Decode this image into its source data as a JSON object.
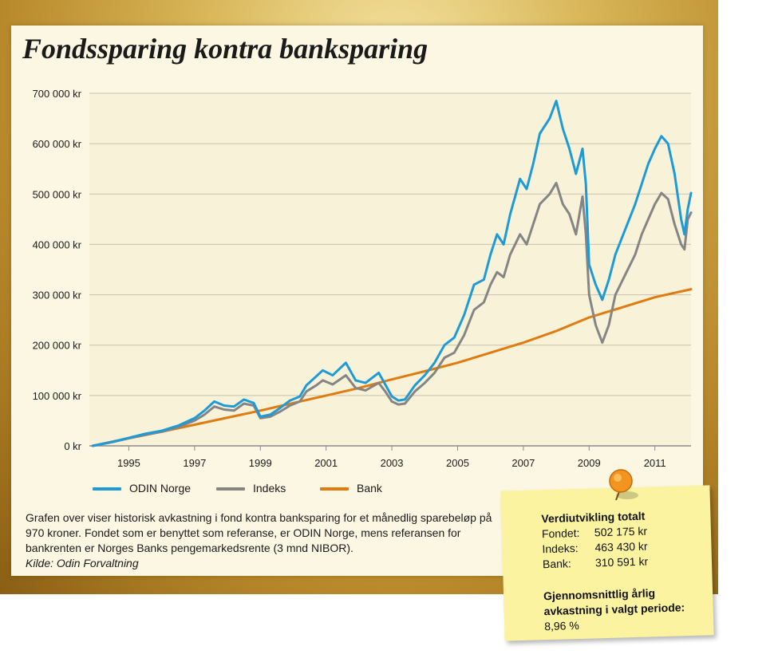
{
  "title": "Fondssparing kontra banksparing",
  "legend": [
    {
      "label": "ODIN Norge",
      "color": "#1e9ad6"
    },
    {
      "label": "Indeks",
      "color": "#858585"
    },
    {
      "label": "Bank",
      "color": "#e07b10"
    }
  ],
  "caption": {
    "text": "Grafen over viser historisk avkastning i fond kontra banksparing for et månedlig sparebeløp på 970 kroner. Fondet som er benyttet som referanse, er ODIN Norge, mens referansen for bankrenten er Norges Banks pengemarkedsrente (3 mnd NIBOR).",
    "source": "Kilde: Odin Forvaltning"
  },
  "note": {
    "header": "Verdiutvikling totalt",
    "rows": [
      {
        "label": "Fondet:",
        "value": "502 175 kr"
      },
      {
        "label": "Indeks:",
        "value": "463 430 kr"
      },
      {
        "label": "Bank:",
        "value": "310 591 kr"
      }
    ],
    "avg_label": "Gjennomsnittlig årlig avkastning i valgt periode",
    "avg_colon": ":",
    "avg_value": "8,96 %"
  },
  "chart_data": {
    "type": "line",
    "xlim": [
      1993.8,
      2012.1
    ],
    "ylim": [
      0,
      700000
    ],
    "x_ticks": [
      1995,
      1997,
      1999,
      2001,
      2003,
      2005,
      2007,
      2009,
      2011
    ],
    "y_ticks": [
      0,
      100000,
      200000,
      300000,
      400000,
      500000,
      600000,
      700000
    ],
    "y_tick_labels": [
      "0 kr",
      "100 000 kr",
      "200 000 kr",
      "300 000 kr",
      "400 000 kr",
      "500 000 kr",
      "600 000 kr",
      "700 000 kr"
    ],
    "grid": true,
    "series": [
      {
        "name": "ODIN Norge",
        "color": "#1e9ad6",
        "points": [
          [
            1993.9,
            0
          ],
          [
            1994.5,
            8000
          ],
          [
            1995,
            16000
          ],
          [
            1995.5,
            24000
          ],
          [
            1996,
            30000
          ],
          [
            1996.5,
            40000
          ],
          [
            1997,
            55000
          ],
          [
            1997.3,
            70000
          ],
          [
            1997.6,
            88000
          ],
          [
            1997.9,
            80000
          ],
          [
            1998.2,
            78000
          ],
          [
            1998.5,
            92000
          ],
          [
            1998.8,
            85000
          ],
          [
            1999,
            58000
          ],
          [
            1999.3,
            62000
          ],
          [
            1999.6,
            75000
          ],
          [
            1999.9,
            90000
          ],
          [
            2000.2,
            98000
          ],
          [
            2000.4,
            120000
          ],
          [
            2000.7,
            138000
          ],
          [
            2000.9,
            150000
          ],
          [
            2001.2,
            140000
          ],
          [
            2001.6,
            165000
          ],
          [
            2001.9,
            130000
          ],
          [
            2002.2,
            125000
          ],
          [
            2002.6,
            145000
          ],
          [
            2002.8,
            122000
          ],
          [
            2003.0,
            98000
          ],
          [
            2003.2,
            90000
          ],
          [
            2003.4,
            92000
          ],
          [
            2003.7,
            120000
          ],
          [
            2004.0,
            140000
          ],
          [
            2004.3,
            165000
          ],
          [
            2004.6,
            200000
          ],
          [
            2004.9,
            215000
          ],
          [
            2005.2,
            260000
          ],
          [
            2005.5,
            320000
          ],
          [
            2005.8,
            330000
          ],
          [
            2006.0,
            380000
          ],
          [
            2006.2,
            420000
          ],
          [
            2006.4,
            400000
          ],
          [
            2006.6,
            460000
          ],
          [
            2006.9,
            530000
          ],
          [
            2007.1,
            510000
          ],
          [
            2007.3,
            560000
          ],
          [
            2007.5,
            620000
          ],
          [
            2007.8,
            650000
          ],
          [
            2008.0,
            685000
          ],
          [
            2008.2,
            630000
          ],
          [
            2008.4,
            590000
          ],
          [
            2008.6,
            540000
          ],
          [
            2008.8,
            590000
          ],
          [
            2008.9,
            520000
          ],
          [
            2009.0,
            360000
          ],
          [
            2009.2,
            320000
          ],
          [
            2009.4,
            290000
          ],
          [
            2009.6,
            330000
          ],
          [
            2009.8,
            380000
          ],
          [
            2010.1,
            430000
          ],
          [
            2010.4,
            480000
          ],
          [
            2010.6,
            520000
          ],
          [
            2010.8,
            560000
          ],
          [
            2011.0,
            590000
          ],
          [
            2011.2,
            615000
          ],
          [
            2011.4,
            600000
          ],
          [
            2011.6,
            540000
          ],
          [
            2011.8,
            450000
          ],
          [
            2011.9,
            420000
          ],
          [
            2012.0,
            470000
          ],
          [
            2012.1,
            502000
          ]
        ]
      },
      {
        "name": "Indeks",
        "color": "#858585",
        "points": [
          [
            1993.9,
            0
          ],
          [
            1994.5,
            7500
          ],
          [
            1995,
            15000
          ],
          [
            1995.5,
            22000
          ],
          [
            1996,
            28000
          ],
          [
            1996.5,
            37000
          ],
          [
            1997,
            50000
          ],
          [
            1997.3,
            62000
          ],
          [
            1997.6,
            78000
          ],
          [
            1997.9,
            72000
          ],
          [
            1998.2,
            70000
          ],
          [
            1998.5,
            84000
          ],
          [
            1998.8,
            80000
          ],
          [
            1999,
            55000
          ],
          [
            1999.3,
            58000
          ],
          [
            1999.6,
            68000
          ],
          [
            1999.9,
            80000
          ],
          [
            2000.2,
            88000
          ],
          [
            2000.4,
            108000
          ],
          [
            2000.7,
            120000
          ],
          [
            2000.9,
            130000
          ],
          [
            2001.2,
            122000
          ],
          [
            2001.6,
            140000
          ],
          [
            2001.9,
            115000
          ],
          [
            2002.2,
            110000
          ],
          [
            2002.6,
            125000
          ],
          [
            2002.8,
            108000
          ],
          [
            2003.0,
            88000
          ],
          [
            2003.2,
            82000
          ],
          [
            2003.4,
            84000
          ],
          [
            2003.7,
            108000
          ],
          [
            2004.0,
            125000
          ],
          [
            2004.3,
            145000
          ],
          [
            2004.6,
            175000
          ],
          [
            2004.9,
            185000
          ],
          [
            2005.2,
            220000
          ],
          [
            2005.5,
            270000
          ],
          [
            2005.8,
            285000
          ],
          [
            2006.0,
            320000
          ],
          [
            2006.2,
            345000
          ],
          [
            2006.4,
            335000
          ],
          [
            2006.6,
            380000
          ],
          [
            2006.9,
            420000
          ],
          [
            2007.1,
            400000
          ],
          [
            2007.3,
            440000
          ],
          [
            2007.5,
            480000
          ],
          [
            2007.8,
            500000
          ],
          [
            2008.0,
            522000
          ],
          [
            2008.2,
            480000
          ],
          [
            2008.4,
            460000
          ],
          [
            2008.6,
            420000
          ],
          [
            2008.8,
            495000
          ],
          [
            2008.9,
            420000
          ],
          [
            2009.0,
            300000
          ],
          [
            2009.2,
            240000
          ],
          [
            2009.4,
            205000
          ],
          [
            2009.6,
            240000
          ],
          [
            2009.8,
            300000
          ],
          [
            2010.1,
            340000
          ],
          [
            2010.4,
            380000
          ],
          [
            2010.6,
            420000
          ],
          [
            2010.8,
            450000
          ],
          [
            2011.0,
            480000
          ],
          [
            2011.2,
            502000
          ],
          [
            2011.4,
            490000
          ],
          [
            2011.6,
            440000
          ],
          [
            2011.8,
            400000
          ],
          [
            2011.9,
            390000
          ],
          [
            2012.0,
            450000
          ],
          [
            2012.1,
            463000
          ]
        ]
      },
      {
        "name": "Bank",
        "color": "#e07b10",
        "points": [
          [
            1993.9,
            0
          ],
          [
            1995,
            15000
          ],
          [
            1996,
            28000
          ],
          [
            1997,
            42000
          ],
          [
            1998,
            56000
          ],
          [
            1999,
            70000
          ],
          [
            2000,
            85000
          ],
          [
            2001,
            100000
          ],
          [
            2002,
            115000
          ],
          [
            2003,
            132000
          ],
          [
            2004,
            148000
          ],
          [
            2005,
            165000
          ],
          [
            2006,
            185000
          ],
          [
            2007,
            205000
          ],
          [
            2008,
            228000
          ],
          [
            2009,
            255000
          ],
          [
            2010,
            275000
          ],
          [
            2011,
            295000
          ],
          [
            2012.1,
            311000
          ]
        ]
      }
    ]
  }
}
